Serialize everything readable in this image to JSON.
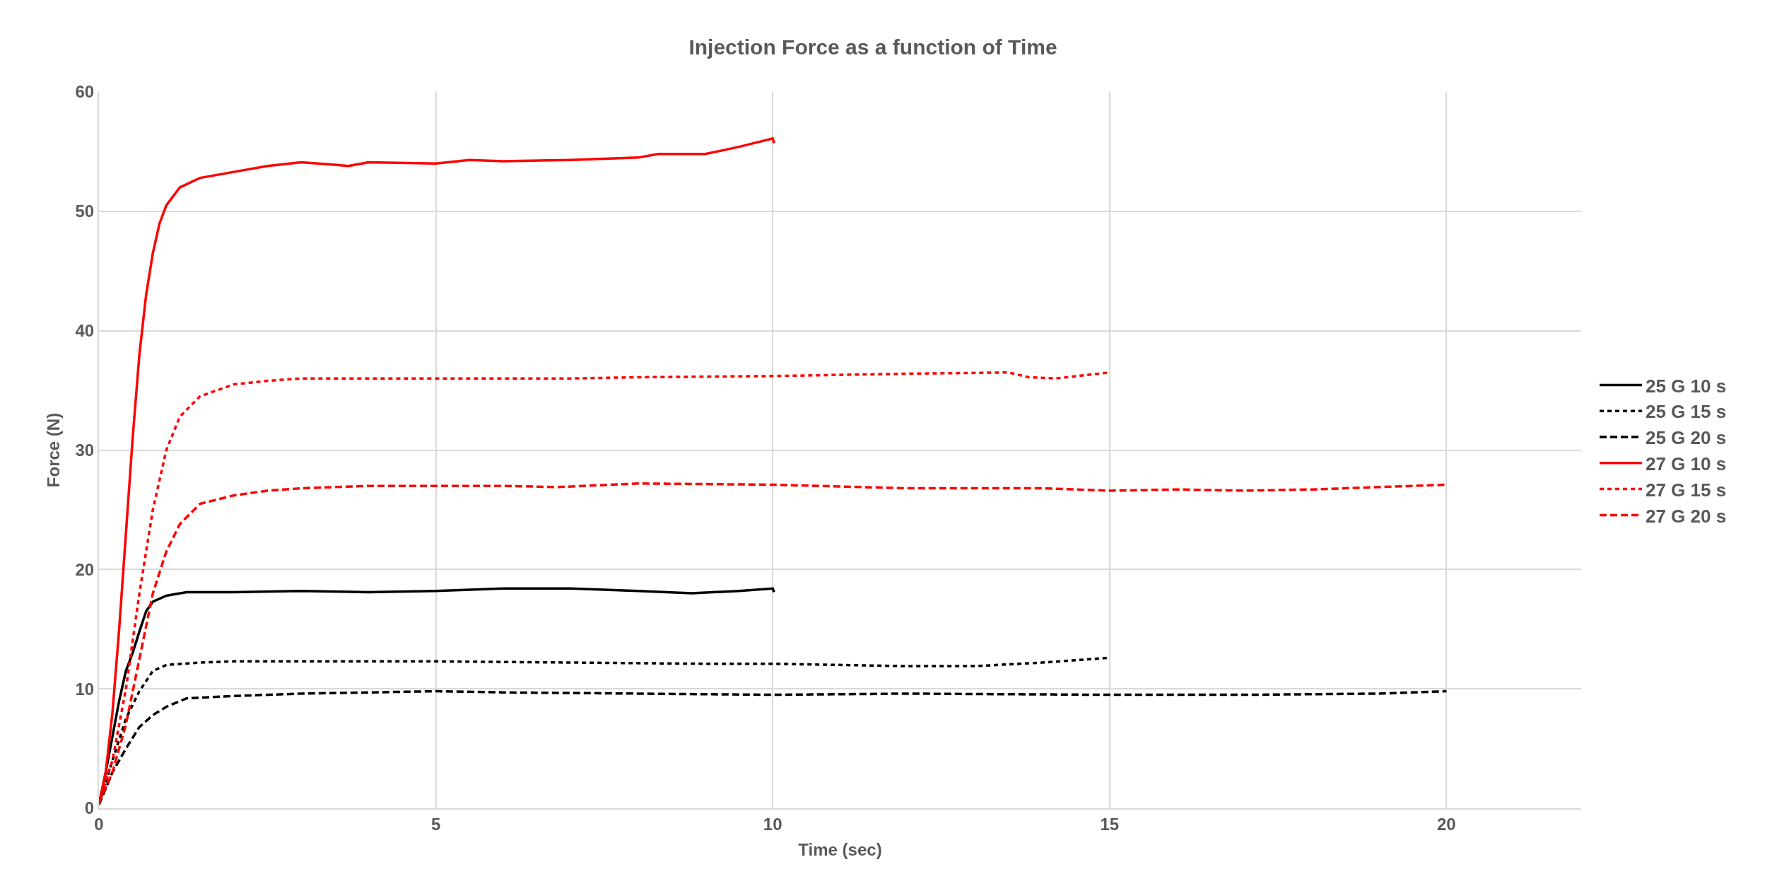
{
  "chart_data": {
    "type": "line",
    "title": "Injection Force as a function of Time",
    "xlabel": "Time (sec)",
    "ylabel": "Force (N)",
    "xlim": [
      0,
      22
    ],
    "xticks": [
      0,
      5,
      10,
      15,
      20
    ],
    "ylim": [
      0,
      60
    ],
    "yticks": [
      0,
      10,
      20,
      30,
      40,
      50,
      60
    ],
    "grid": true,
    "legend": "right",
    "marker": "none",
    "series": [
      {
        "name": "25 G 10 s",
        "color": "#000000",
        "line_style": "solid",
        "x": [
          0,
          0.1,
          0.2,
          0.3,
          0.4,
          0.5,
          0.6,
          0.7,
          0.8,
          1.0,
          1.3,
          2,
          3,
          4,
          5,
          6,
          7,
          8,
          8.8,
          9.5,
          10,
          10.02
        ],
        "values": [
          0.3,
          3,
          6,
          9,
          11.5,
          13,
          14.8,
          16.5,
          17.3,
          17.8,
          18.1,
          18.1,
          18.2,
          18.1,
          18.2,
          18.4,
          18.4,
          18.2,
          18.0,
          18.2,
          18.4,
          18.1
        ]
      },
      {
        "name": "25 G 15 s",
        "color": "#000000",
        "line_style": "dotted",
        "x": [
          0,
          0.2,
          0.4,
          0.6,
          0.8,
          1.0,
          1.5,
          2,
          3,
          5,
          7,
          9,
          10,
          12,
          13,
          14,
          15
        ],
        "values": [
          0.3,
          4,
          7.5,
          9.8,
          11.5,
          12,
          12.2,
          12.3,
          12.3,
          12.3,
          12.2,
          12.1,
          12.1,
          11.9,
          11.9,
          12.2,
          12.6
        ]
      },
      {
        "name": "25 G 20 s",
        "color": "#000000",
        "line_style": "dashed",
        "x": [
          0,
          0.2,
          0.4,
          0.6,
          0.8,
          1.0,
          1.3,
          2,
          3,
          4,
          5,
          6,
          8,
          10,
          12,
          15,
          17,
          19,
          20
        ],
        "values": [
          0.3,
          3,
          5,
          6.8,
          7.8,
          8.5,
          9.2,
          9.4,
          9.6,
          9.7,
          9.8,
          9.7,
          9.6,
          9.5,
          9.6,
          9.5,
          9.5,
          9.6,
          9.8
        ]
      },
      {
        "name": "27 G 10 s",
        "color": "#ff0000",
        "line_style": "solid",
        "x": [
          0,
          0.1,
          0.2,
          0.3,
          0.4,
          0.5,
          0.6,
          0.7,
          0.8,
          0.9,
          1.0,
          1.2,
          1.5,
          2,
          2.5,
          3,
          3.5,
          3.7,
          4,
          5,
          5.5,
          6,
          7,
          8,
          8.3,
          9,
          9.5,
          10,
          10.02
        ],
        "values": [
          0.3,
          3,
          8,
          15,
          23,
          31,
          38,
          43,
          46.5,
          49,
          50.5,
          52,
          52.8,
          53.3,
          53.8,
          54.1,
          53.9,
          53.8,
          54.1,
          54.0,
          54.3,
          54.2,
          54.3,
          54.5,
          54.8,
          54.8,
          55.4,
          56.1,
          55.7
        ]
      },
      {
        "name": "27 G 15 s",
        "color": "#ff0000",
        "line_style": "dotted",
        "x": [
          0,
          0.2,
          0.4,
          0.6,
          0.8,
          1.0,
          1.2,
          1.5,
          2,
          2.5,
          3,
          4,
          5,
          6,
          7,
          8,
          10,
          12,
          13.5,
          13.8,
          14.2,
          15
        ],
        "values": [
          0.5,
          4,
          10,
          18,
          25,
          30,
          32.8,
          34.5,
          35.5,
          35.8,
          36,
          36,
          36,
          36,
          36,
          36.1,
          36.2,
          36.4,
          36.5,
          36.1,
          36,
          36.5
        ]
      },
      {
        "name": "27 G 20 s",
        "color": "#ff0000",
        "line_style": "dashed",
        "x": [
          0,
          0.2,
          0.4,
          0.6,
          0.8,
          1.0,
          1.2,
          1.5,
          2,
          2.5,
          3,
          4,
          5,
          6,
          6.8,
          8,
          10,
          12,
          14,
          15,
          16,
          17,
          18,
          19,
          20
        ],
        "values": [
          0.5,
          3,
          7,
          12.5,
          18,
          21.5,
          23.8,
          25.5,
          26.2,
          26.6,
          26.8,
          27,
          27,
          27,
          26.9,
          27.2,
          27.1,
          26.8,
          26.8,
          26.6,
          26.7,
          26.6,
          26.7,
          26.9,
          27.1
        ]
      }
    ]
  }
}
